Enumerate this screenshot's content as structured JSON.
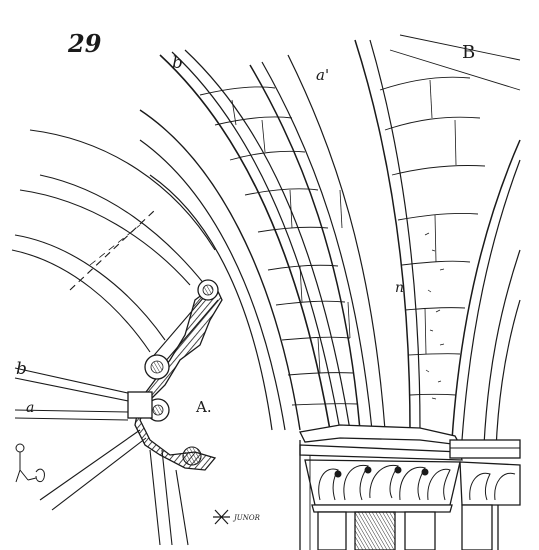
{
  "figure": {
    "number": "29",
    "labels": {
      "b_top": "b",
      "a_prime": "a'",
      "B": "B",
      "n": "n",
      "b_left": "b",
      "a_left": "a",
      "A": "A."
    },
    "signature": "JUNOR"
  },
  "colors": {
    "ink": "#1a1a1a",
    "paper": "#ffffff"
  }
}
